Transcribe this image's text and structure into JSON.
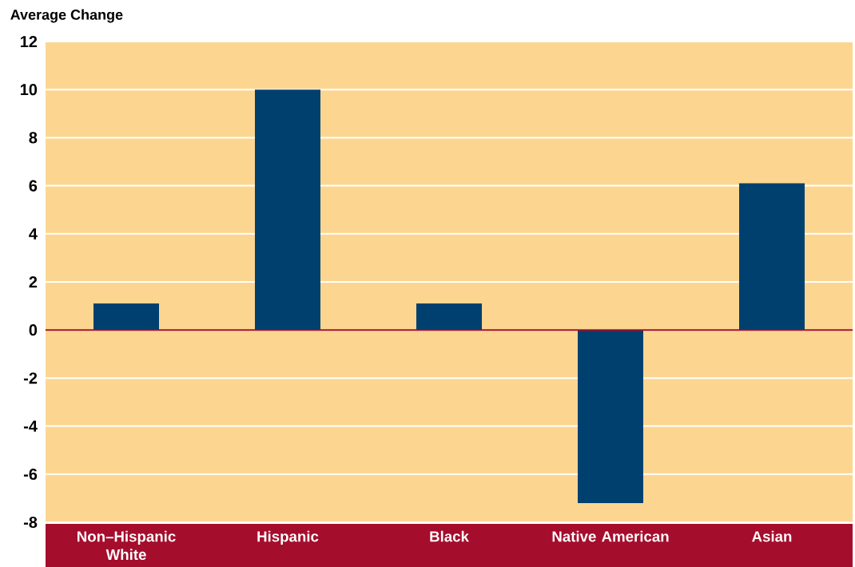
{
  "chart_data": {
    "type": "bar",
    "ylabel": "Average Change",
    "categories": [
      "Non–Hispanic White",
      "Hispanic",
      "Black",
      "Native American",
      "Asian"
    ],
    "values": [
      1.1,
      10.0,
      1.1,
      -7.2,
      6.1
    ],
    "color": "#00406f",
    "ylim": [
      -8,
      12
    ],
    "yticks": [
      -8,
      -6,
      -4,
      -2,
      0,
      2,
      4,
      6,
      8,
      10,
      12
    ],
    "grid": "y",
    "ref_lines": [
      {
        "axis": "y",
        "value": 0,
        "color": "#a50d2d"
      }
    ]
  }
}
